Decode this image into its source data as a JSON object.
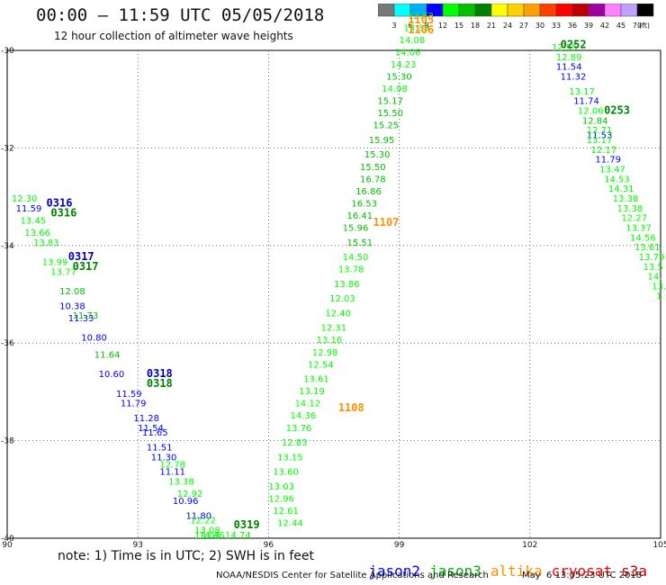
{
  "header": {
    "title": "00:00 – 11:59 UTC 05/05/2018",
    "subtitle": "12 hour collection of altimeter wave heights"
  },
  "scale": {
    "unit": "(ft)",
    "ticks": [
      "3",
      "6",
      "9",
      "12",
      "15",
      "18",
      "21",
      "24",
      "27",
      "30",
      "33",
      "36",
      "39",
      "42",
      "45",
      "70"
    ],
    "colors": [
      "#777777",
      "#00ffff",
      "#00b0ff",
      "#0000ff",
      "#00ff00",
      "#00c000",
      "#008000",
      "#ffff00",
      "#ffd000",
      "#ffa000",
      "#ff4000",
      "#ff0000",
      "#c00000",
      "#a000a0",
      "#ff80ff",
      "#c0a0ff",
      "#000000"
    ]
  },
  "chart_data": {
    "type": "scatter",
    "xlim": [
      90,
      105
    ],
    "ylim": [
      -40,
      -30
    ],
    "x_ticks": [
      "90",
      "93",
      "96",
      "99",
      "102",
      "105"
    ],
    "y_ticks": [
      "-30",
      "-32",
      "-34",
      "-36",
      "-38",
      "-40"
    ],
    "grid": true,
    "tracks": [
      {
        "satellite": "jason2",
        "points": [
          {
            "x": 90.2,
            "y": -33.3,
            "v": "11.59",
            "c": "#0000ff"
          },
          {
            "x": 91.2,
            "y": -35.3,
            "v": "10.38",
            "c": "#0000ff"
          },
          {
            "x": 91.4,
            "y": -35.55,
            "v": "11.33",
            "c": "#0000ff"
          },
          {
            "x": 91.7,
            "y": -35.95,
            "v": "10.80",
            "c": "#0000ff"
          },
          {
            "x": 92.1,
            "y": -36.7,
            "v": "10.60",
            "c": "#0000ff"
          },
          {
            "x": 92.5,
            "y": -37.1,
            "v": "11.59",
            "c": "#0000ff"
          },
          {
            "x": 92.6,
            "y": -37.3,
            "v": "11.79",
            "c": "#0000ff"
          },
          {
            "x": 92.9,
            "y": -37.6,
            "v": "11.28",
            "c": "#0000ff"
          },
          {
            "x": 93.0,
            "y": -37.8,
            "v": "11.54",
            "c": "#0000ff"
          },
          {
            "x": 93.1,
            "y": -37.9,
            "v": "11.65",
            "c": "#0000ff"
          },
          {
            "x": 93.2,
            "y": -38.2,
            "v": "11.51",
            "c": "#0000ff"
          },
          {
            "x": 93.3,
            "y": -38.4,
            "v": "11.30",
            "c": "#0000ff"
          },
          {
            "x": 93.5,
            "y": -38.7,
            "v": "11.11",
            "c": "#0000ff"
          },
          {
            "x": 93.8,
            "y": -39.3,
            "v": "10.96",
            "c": "#0000ff"
          },
          {
            "x": 94.1,
            "y": -39.6,
            "v": "11.80",
            "c": "#0000ff"
          },
          {
            "x": 102.6,
            "y": -30.4,
            "v": "11.54",
            "c": "#0000ff"
          },
          {
            "x": 102.7,
            "y": -30.6,
            "v": "11.32",
            "c": "#0000ff"
          },
          {
            "x": 102.9,
            "y": -30.9,
            "v": "13.17",
            "c": "#00ff00"
          },
          {
            "x": 103.0,
            "y": -31.1,
            "v": "11.74",
            "c": "#0000ff"
          },
          {
            "x": 103.3,
            "y": -31.8,
            "v": "11.53",
            "c": "#0000ff"
          },
          {
            "x": 103.5,
            "y": -32.3,
            "v": "11.79",
            "c": "#0000ff"
          }
        ]
      },
      {
        "satellite": "jason3",
        "points": [
          {
            "x": 90.1,
            "y": -33.1,
            "v": "12.30",
            "c": "#00ff00"
          },
          {
            "x": 90.3,
            "y": -33.55,
            "v": "13.45",
            "c": "#00ff00"
          },
          {
            "x": 90.4,
            "y": -33.8,
            "v": "13.66",
            "c": "#00ff00"
          },
          {
            "x": 90.6,
            "y": -34.0,
            "v": "13.83",
            "c": "#00ff00"
          },
          {
            "x": 90.8,
            "y": -34.4,
            "v": "13.99",
            "c": "#00ff00"
          },
          {
            "x": 91.0,
            "y": -34.6,
            "v": "13.77",
            "c": "#00ff00"
          },
          {
            "x": 91.2,
            "y": -35.0,
            "v": "12.08",
            "c": "#00c000"
          },
          {
            "x": 91.5,
            "y": -35.5,
            "v": "11.73",
            "c": "#00c000"
          },
          {
            "x": 92.0,
            "y": -36.3,
            "v": "11.64",
            "c": "#00c000"
          },
          {
            "x": 93.5,
            "y": -38.55,
            "v": "12.78",
            "c": "#00ff00"
          },
          {
            "x": 93.7,
            "y": -38.9,
            "v": "13.38",
            "c": "#00ff00"
          },
          {
            "x": 93.9,
            "y": -39.15,
            "v": "12.92",
            "c": "#00ff00"
          },
          {
            "x": 94.2,
            "y": -39.7,
            "v": "12.22",
            "c": "#00ff00"
          },
          {
            "x": 94.3,
            "y": -39.9,
            "v": "13.08",
            "c": "#00ff00"
          },
          {
            "x": 94.4,
            "y": -40.0,
            "v": "14.46",
            "c": "#00ff00"
          },
          {
            "x": 94.3,
            "y": -40.0,
            "v": "13.04",
            "c": "#00ff00"
          },
          {
            "x": 95.0,
            "y": -40.0,
            "v": "14.74",
            "c": "#00ff00"
          },
          {
            "x": 96.0,
            "y": -39.25,
            "v": "12.96",
            "c": "#00ff00"
          },
          {
            "x": 96.1,
            "y": -39.5,
            "v": "12.61",
            "c": "#00ff00"
          },
          {
            "x": 96.2,
            "y": -39.75,
            "v": "12.44",
            "c": "#00ff00"
          },
          {
            "x": 96.0,
            "y": -39.0,
            "v": "13.03",
            "c": "#00ff00"
          },
          {
            "x": 96.1,
            "y": -38.7,
            "v": "13.60",
            "c": "#00ff00"
          },
          {
            "x": 96.2,
            "y": -38.4,
            "v": "13.15",
            "c": "#00ff00"
          },
          {
            "x": 96.3,
            "y": -38.1,
            "v": "12.83",
            "c": "#00ff00"
          },
          {
            "x": 96.4,
            "y": -37.8,
            "v": "13.76",
            "c": "#00ff00"
          },
          {
            "x": 96.5,
            "y": -37.55,
            "v": "14.36",
            "c": "#00ff00"
          },
          {
            "x": 96.6,
            "y": -37.3,
            "v": "14.12",
            "c": "#00ff00"
          },
          {
            "x": 96.7,
            "y": -37.05,
            "v": "13.19",
            "c": "#00ff00"
          },
          {
            "x": 96.8,
            "y": -36.8,
            "v": "13.61",
            "c": "#00ff00"
          },
          {
            "x": 96.9,
            "y": -36.5,
            "v": "12.54",
            "c": "#00ff00"
          },
          {
            "x": 97.0,
            "y": -36.25,
            "v": "12.98",
            "c": "#00ff00"
          },
          {
            "x": 97.1,
            "y": -36.0,
            "v": "13.16",
            "c": "#00ff00"
          },
          {
            "x": 97.2,
            "y": -35.75,
            "v": "12.31",
            "c": "#00ff00"
          },
          {
            "x": 97.3,
            "y": -35.45,
            "v": "12.40",
            "c": "#00ff00"
          },
          {
            "x": 97.4,
            "y": -35.15,
            "v": "12.03",
            "c": "#00ff00"
          },
          {
            "x": 97.5,
            "y": -34.85,
            "v": "13.86",
            "c": "#00ff00"
          },
          {
            "x": 97.6,
            "y": -34.55,
            "v": "13.78",
            "c": "#00ff00"
          },
          {
            "x": 97.7,
            "y": -34.3,
            "v": "14.50",
            "c": "#00ff00"
          },
          {
            "x": 97.8,
            "y": -34.0,
            "v": "15.51",
            "c": "#00c000"
          },
          {
            "x": 97.7,
            "y": -33.7,
            "v": "15.96",
            "c": "#00c000"
          },
          {
            "x": 97.8,
            "y": -33.45,
            "v": "16.41",
            "c": "#00c000"
          },
          {
            "x": 97.9,
            "y": -33.2,
            "v": "16.53",
            "c": "#00c000"
          },
          {
            "x": 98.0,
            "y": -32.95,
            "v": "16.86",
            "c": "#00c000"
          },
          {
            "x": 98.1,
            "y": -32.7,
            "v": "16.78",
            "c": "#00c000"
          },
          {
            "x": 98.1,
            "y": -32.45,
            "v": "15.50",
            "c": "#00c000"
          },
          {
            "x": 98.2,
            "y": -32.2,
            "v": "15.30",
            "c": "#00c000"
          },
          {
            "x": 98.3,
            "y": -31.9,
            "v": "15.95",
            "c": "#00c000"
          },
          {
            "x": 98.4,
            "y": -31.6,
            "v": "15.25",
            "c": "#00c000"
          },
          {
            "x": 98.5,
            "y": -31.35,
            "v": "15.50",
            "c": "#00c000"
          },
          {
            "x": 98.5,
            "y": -31.1,
            "v": "15.17",
            "c": "#00c000"
          },
          {
            "x": 98.6,
            "y": -30.85,
            "v": "14.98",
            "c": "#00ff00"
          },
          {
            "x": 98.7,
            "y": -30.6,
            "v": "15.30",
            "c": "#00c000"
          },
          {
            "x": 98.8,
            "y": -30.35,
            "v": "14.23",
            "c": "#00ff00"
          },
          {
            "x": 98.9,
            "y": -30.1,
            "v": "14.06",
            "c": "#00ff00"
          },
          {
            "x": 99.0,
            "y": -29.85,
            "v": "14.08",
            "c": "#00ff00"
          },
          {
            "x": 99.1,
            "y": -29.6,
            "v": "13.35",
            "c": "#00ff00"
          },
          {
            "x": 99.2,
            "y": -29.35,
            "v": "12.43",
            "c": "#00ff00"
          },
          {
            "x": 102.5,
            "y": -30.0,
            "v": "12.55",
            "c": "#00ff00"
          },
          {
            "x": 102.6,
            "y": -30.2,
            "v": "12.89",
            "c": "#00ff00"
          },
          {
            "x": 103.1,
            "y": -31.3,
            "v": "12.06",
            "c": "#00ff00"
          },
          {
            "x": 103.2,
            "y": -31.5,
            "v": "12.84",
            "c": "#00c000"
          },
          {
            "x": 103.3,
            "y": -31.7,
            "v": "12.71",
            "c": "#00ff00"
          },
          {
            "x": 103.3,
            "y": -31.9,
            "v": "13.17",
            "c": "#00ff00"
          },
          {
            "x": 103.4,
            "y": -32.1,
            "v": "12.17",
            "c": "#00ff00"
          },
          {
            "x": 103.6,
            "y": -32.5,
            "v": "13.47",
            "c": "#00ff00"
          },
          {
            "x": 103.7,
            "y": -32.7,
            "v": "14.53",
            "c": "#00ff00"
          },
          {
            "x": 103.8,
            "y": -32.9,
            "v": "14.31",
            "c": "#00ff00"
          },
          {
            "x": 103.9,
            "y": -33.1,
            "v": "13.38",
            "c": "#00ff00"
          },
          {
            "x": 104.0,
            "y": -33.3,
            "v": "13.38",
            "c": "#00ff00"
          },
          {
            "x": 104.1,
            "y": -33.5,
            "v": "12.27",
            "c": "#00ff00"
          },
          {
            "x": 104.2,
            "y": -33.7,
            "v": "13.37",
            "c": "#00ff00"
          },
          {
            "x": 104.3,
            "y": -33.9,
            "v": "14.56",
            "c": "#00ff00"
          },
          {
            "x": 104.4,
            "y": -34.1,
            "v": "13.61",
            "c": "#00ff00"
          },
          {
            "x": 104.5,
            "y": -34.3,
            "v": "13.79",
            "c": "#00ff00"
          },
          {
            "x": 104.6,
            "y": -34.5,
            "v": "13.5",
            "c": "#00ff00"
          },
          {
            "x": 104.7,
            "y": -34.7,
            "v": "14.",
            "c": "#00ff00"
          },
          {
            "x": 104.8,
            "y": -34.9,
            "v": "13.",
            "c": "#00ff00"
          },
          {
            "x": 104.9,
            "y": -35.1,
            "v": "1",
            "c": "#00ff00"
          }
        ]
      }
    ],
    "time_labels": [
      {
        "x": 90.9,
        "y": -33.2,
        "t": "0316",
        "c": "#0000c0"
      },
      {
        "x": 91.0,
        "y": -33.4,
        "t": "0316",
        "c": "#008000"
      },
      {
        "x": 91.4,
        "y": -34.3,
        "t": "0317",
        "c": "#0000c0"
      },
      {
        "x": 91.5,
        "y": -34.5,
        "t": "0317",
        "c": "#008000"
      },
      {
        "x": 93.2,
        "y": -36.7,
        "t": "0318",
        "c": "#0000c0"
      },
      {
        "x": 93.2,
        "y": -36.9,
        "t": "0318",
        "c": "#008000"
      },
      {
        "x": 95.2,
        "y": -39.8,
        "t": "0319",
        "c": "#008000"
      },
      {
        "x": 99.2,
        "y": -29.45,
        "t": "1105",
        "c": "#ff9000"
      },
      {
        "x": 99.2,
        "y": -29.65,
        "t": "1106",
        "c": "#ff9000"
      },
      {
        "x": 98.4,
        "y": -33.6,
        "t": "1107",
        "c": "#ff9000"
      },
      {
        "x": 97.6,
        "y": -37.4,
        "t": "1108",
        "c": "#ff9000"
      },
      {
        "x": 102.7,
        "y": -29.95,
        "t": "0252",
        "c": "#008000"
      },
      {
        "x": 103.7,
        "y": -31.3,
        "t": "0253",
        "c": "#008000"
      }
    ]
  },
  "satellites": [
    {
      "name": "jason2",
      "color": "#0000ff"
    },
    {
      "name": "jason3",
      "color": "#00b000"
    },
    {
      "name": "altika",
      "color": "#ff9000"
    },
    {
      "name": "cryosat",
      "color": "#ff0000"
    },
    {
      "name": "s3a",
      "color": "#c00000"
    }
  ],
  "footer": {
    "note": "note: 1) Time is in UTC; 2) SWH is in feet",
    "credit": "NOAA/NESDIS Center for Satellite Applications and Research",
    "stamp": "May  6 13:05:23 UTC 2018"
  }
}
